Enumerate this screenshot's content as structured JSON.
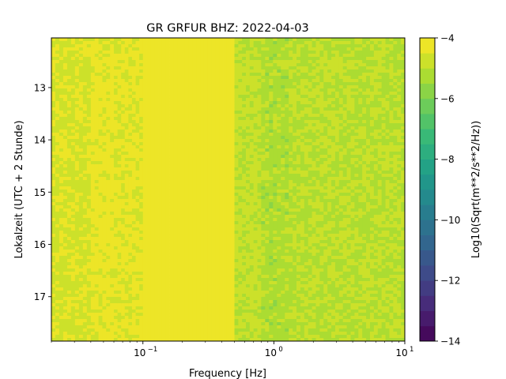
{
  "chart_data": {
    "type": "heatmap",
    "title": "GR GRFUR  BHZ: 2022-04-03",
    "xlabel": "Frequency [Hz]",
    "ylabel": "Lokalzeit (UTC + 2 Stunde)",
    "x_scale": "log",
    "xlim": [
      0.02,
      10
    ],
    "x_ticks": [
      {
        "value": 0.1,
        "base": "10",
        "exp": "−1"
      },
      {
        "value": 1,
        "base": "10",
        "exp": "0"
      },
      {
        "value": 10,
        "base": "10",
        "exp": "1"
      }
    ],
    "ylim": [
      12.05,
      17.85
    ],
    "y_inverted": true,
    "y_ticks": [
      "13",
      "14",
      "15",
      "16",
      "17"
    ],
    "colorbar": {
      "label": "Log10(Sqrt(m**2/s**2/Hz))",
      "range": [
        -14,
        -4
      ],
      "ticks": [
        "−4",
        "−6",
        "−8",
        "−10",
        "−12",
        "−14"
      ],
      "colormap": "viridis",
      "levels": 20
    },
    "frequency_bands": [
      {
        "f_low": 0.02,
        "f_high": 0.04,
        "level": -4.6
      },
      {
        "f_low": 0.04,
        "f_high": 0.06,
        "level": -4.3
      },
      {
        "f_low": 0.06,
        "f_high": 0.1,
        "level": -4.4
      },
      {
        "f_low": 0.1,
        "f_high": 0.5,
        "level": -4.0
      },
      {
        "f_low": 0.5,
        "f_high": 0.8,
        "level": -4.9
      },
      {
        "f_low": 0.8,
        "f_high": 1.3,
        "level": -5.2
      },
      {
        "f_low": 1.3,
        "f_high": 10,
        "level": -5.0
      }
    ]
  }
}
